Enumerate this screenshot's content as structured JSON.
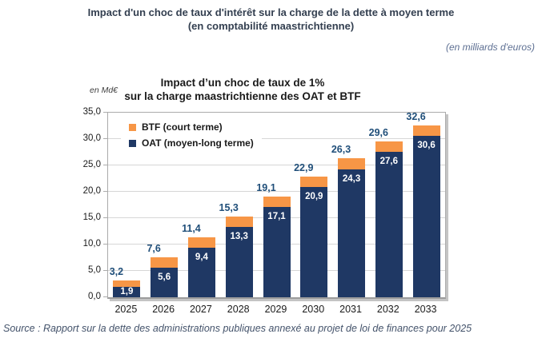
{
  "page": {
    "title_line1": "Impact d'un choc de taux d'intérêt sur la charge de la dette à moyen terme",
    "title_line2": "(en comptabilité maastrichtienne)",
    "unit_note": "(en milliards d'euros)",
    "source": "Source : Rapport sur la dette des administrations publiques annexé au projet de loi de finances pour 2025"
  },
  "chart_data": {
    "type": "bar",
    "stacked": true,
    "title_line1": "Impact d’un choc de taux de 1%",
    "title_line2": "sur la charge maastrichtienne des OAT et BTF",
    "y_axis_unit": "en Md€",
    "categories": [
      "2025",
      "2026",
      "2027",
      "2028",
      "2029",
      "2030",
      "2031",
      "2032",
      "2033"
    ],
    "series": [
      {
        "name": "OAT (moyen-long terme)",
        "color": "#1F3864",
        "values": [
          1.9,
          5.6,
          9.4,
          13.3,
          17.1,
          20.9,
          24.3,
          27.6,
          30.6
        ],
        "labels": [
          "1,9",
          "5,6",
          "9,4",
          "13,3",
          "17,1",
          "20,9",
          "24,3",
          "27,6",
          "30,6"
        ]
      },
      {
        "name": "BTF (court terme)",
        "color": "#F79646",
        "values": [
          1.3,
          2.0,
          2.0,
          2.0,
          2.0,
          2.0,
          2.0,
          2.0,
          2.0
        ],
        "labels": [
          "",
          "",
          "",
          "",
          "",
          "",
          "",
          "",
          ""
        ]
      }
    ],
    "totals": [
      3.2,
      7.6,
      11.4,
      15.3,
      19.1,
      22.9,
      26.3,
      29.6,
      32.6
    ],
    "total_labels": [
      "3,2",
      "7,6",
      "11,4",
      "15,3",
      "19,1",
      "22,9",
      "26,3",
      "29,6",
      "32,6"
    ],
    "legend": [
      {
        "label": "BTF (court terme)",
        "color": "#F79646"
      },
      {
        "label": "OAT (moyen-long terme)",
        "color": "#1F3864"
      }
    ],
    "legend_position": "top-left-inside",
    "grid": true,
    "ylim": [
      0,
      35
    ],
    "y_tick_step": 5,
    "y_ticks": [
      "35,0",
      "30,0",
      "25,0",
      "20,0",
      "15,0",
      "10,0",
      "5,0",
      "0,0"
    ],
    "xlabel": "",
    "ylabel": "en Md€",
    "total_label_color": "#1F4E79"
  }
}
